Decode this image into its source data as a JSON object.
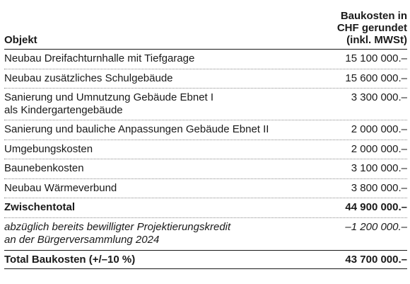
{
  "table": {
    "header": {
      "object_label": "Objekt",
      "cost_label_line1": "Baukosten in",
      "cost_label_line2": "CHF gerundet",
      "cost_label_line3": "(inkl. MWSt)"
    },
    "rows": [
      {
        "label": "Neubau Dreifachturnhalle mit Tiefgarage",
        "amount": "15 100 000.–"
      },
      {
        "label": "Neubau zusätzliches Schulgebäude",
        "amount": "15 600 000.–"
      },
      {
        "label": "Sanierung und Umnutzung Gebäude Ebnet I\nals Kindergartengebäude",
        "amount": "3 300 000.–"
      },
      {
        "label": "Sanierung und bauliche Anpassungen Gebäude Ebnet II",
        "amount": "2 000 000.–"
      },
      {
        "label": "Umgebungskosten",
        "amount": "2 000 000.–"
      },
      {
        "label": "Baunebenkosten",
        "amount": "3 100 000.–"
      },
      {
        "label": "Neubau Wärmeverbund",
        "amount": "3 800 000.–"
      },
      {
        "label": "Zwischentotal",
        "amount": "44 900 000.–"
      },
      {
        "label": "abzüglich bereits bewilligter Projektierungskredit\nan der Bürgerversammlung 2024",
        "amount": "–1 200 000.–"
      },
      {
        "label": "Total Baukosten (+/–10 %)",
        "amount": "43 700 000.–"
      }
    ]
  }
}
